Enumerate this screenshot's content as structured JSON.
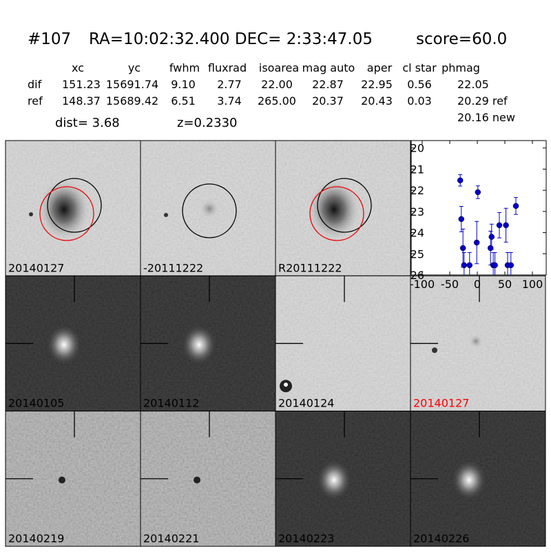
{
  "header": {
    "id": "#107",
    "coords": "RA=10:02:32.400 DEC= 2:33:47.05",
    "score": "score=60.0"
  },
  "table": {
    "columns": [
      "xc",
      "yc",
      "fwhm",
      "fluxrad",
      "isoarea",
      "mag auto",
      "aper",
      "cl star",
      "phmag"
    ],
    "rows": [
      [
        "dif",
        "151.23",
        "15691.74",
        "9.10",
        "2.77",
        "22.00",
        "22.87",
        "22.95",
        "0.56",
        "22.05"
      ],
      [
        "ref",
        "148.37",
        "15689.42",
        "6.51",
        "3.74",
        "265.00",
        "20.37",
        "20.43",
        "0.03",
        "20.29 ref"
      ]
    ],
    "extra": "20.16 new"
  },
  "dist": "dist=  3.68",
  "z": "z=0.2330",
  "tiles": [
    "20140127",
    "-20111222",
    "R20111222",
    "20140105",
    "20140112",
    "20140124",
    "20140127",
    "20140219",
    "20140221",
    "20140223",
    "20140226"
  ],
  "chart_data": {
    "type": "scatter",
    "color": "#0000cc",
    "x": [
      -31,
      -29,
      -26,
      -24,
      -14,
      -1,
      1,
      24,
      26,
      29,
      32,
      40,
      52,
      55,
      61,
      70
    ],
    "values": [
      21.53,
      23.36,
      24.73,
      25.54,
      25.54,
      24.47,
      22.09,
      24.73,
      24.2,
      25.54,
      25.54,
      23.65,
      23.65,
      25.54,
      25.54,
      22.74
    ],
    "errors": [
      0.27,
      0.6,
      0.9,
      0.6,
      0.6,
      1.0,
      0.3,
      0.8,
      0.6,
      0.6,
      0.6,
      0.6,
      0.8,
      0.6,
      0.6,
      0.4
    ],
    "xlim": [
      -120,
      125
    ],
    "ylim": [
      26,
      19.65
    ],
    "xticks": [
      -100,
      -50,
      0,
      50,
      100
    ],
    "yticks": [
      20,
      21,
      22,
      23,
      24,
      25,
      26
    ]
  }
}
